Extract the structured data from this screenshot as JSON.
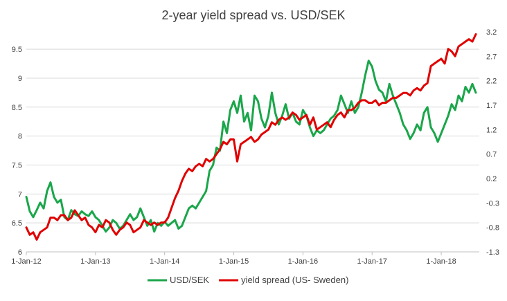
{
  "chart_data": {
    "type": "line",
    "title": "2-year yield spread vs. USD/SEK",
    "xlabel": "",
    "ylabel": "",
    "y2label": "",
    "x_ticks": [
      "1-Jan-12",
      "1-Jan-13",
      "1-Jan-14",
      "1-Jan-15",
      "1-Jan-16",
      "1-Jan-17",
      "1-Jan-18"
    ],
    "x_range": [
      2012.0,
      2018.55
    ],
    "ylim_left": [
      6,
      9.8
    ],
    "yticks_left": [
      "6",
      "6.5",
      "7",
      "7.5",
      "8",
      "8.5",
      "9",
      "9.5"
    ],
    "ylim_right": [
      -1.3,
      3.2
    ],
    "yticks_right": [
      "-1.3",
      "-0.8",
      "-0.3",
      "0.2",
      "0.7",
      "1.2",
      "1.7",
      "2.2",
      "2.7",
      "3.2"
    ],
    "legend_position": "bottom",
    "grid": "horizontal",
    "series": [
      {
        "name": "USD/SEK",
        "color": "#1aa64a",
        "axis": "left",
        "x": [
          2012.0,
          2012.05,
          2012.1,
          2012.15,
          2012.2,
          2012.25,
          2012.3,
          2012.35,
          2012.4,
          2012.45,
          2012.5,
          2012.55,
          2012.6,
          2012.65,
          2012.7,
          2012.75,
          2012.8,
          2012.85,
          2012.9,
          2012.95,
          2013.0,
          2013.05,
          2013.1,
          2013.15,
          2013.2,
          2013.25,
          2013.3,
          2013.35,
          2013.4,
          2013.45,
          2013.5,
          2013.55,
          2013.6,
          2013.65,
          2013.7,
          2013.75,
          2013.8,
          2013.85,
          2013.9,
          2013.95,
          2014.0,
          2014.05,
          2014.1,
          2014.15,
          2014.2,
          2014.25,
          2014.3,
          2014.35,
          2014.4,
          2014.45,
          2014.5,
          2014.55,
          2014.6,
          2014.65,
          2014.7,
          2014.75,
          2014.8,
          2014.85,
          2014.9,
          2014.95,
          2015.0,
          2015.05,
          2015.1,
          2015.15,
          2015.2,
          2015.25,
          2015.3,
          2015.35,
          2015.4,
          2015.45,
          2015.5,
          2015.55,
          2015.6,
          2015.65,
          2015.7,
          2015.75,
          2015.8,
          2015.85,
          2015.9,
          2015.95,
          2016.0,
          2016.05,
          2016.1,
          2016.15,
          2016.2,
          2016.25,
          2016.3,
          2016.35,
          2016.4,
          2016.45,
          2016.5,
          2016.55,
          2016.6,
          2016.65,
          2016.7,
          2016.75,
          2016.8,
          2016.85,
          2016.9,
          2016.95,
          2017.0,
          2017.05,
          2017.1,
          2017.15,
          2017.2,
          2017.25,
          2017.3,
          2017.35,
          2017.4,
          2017.45,
          2017.5,
          2017.55,
          2017.6,
          2017.65,
          2017.7,
          2017.75,
          2017.8,
          2017.85,
          2017.9,
          2017.95,
          2018.0,
          2018.05,
          2018.1,
          2018.15,
          2018.2,
          2018.25,
          2018.3,
          2018.35,
          2018.4,
          2018.45,
          2018.5
        ],
        "values": [
          6.95,
          6.7,
          6.6,
          6.72,
          6.85,
          6.75,
          7.05,
          7.2,
          6.95,
          6.85,
          6.9,
          6.6,
          6.55,
          6.72,
          6.65,
          6.62,
          6.7,
          6.65,
          6.62,
          6.7,
          6.6,
          6.55,
          6.45,
          6.35,
          6.42,
          6.55,
          6.5,
          6.4,
          6.45,
          6.55,
          6.65,
          6.55,
          6.6,
          6.75,
          6.6,
          6.45,
          6.55,
          6.35,
          6.5,
          6.45,
          6.52,
          6.45,
          6.5,
          6.55,
          6.4,
          6.45,
          6.6,
          6.75,
          6.8,
          6.75,
          6.85,
          6.95,
          7.05,
          7.4,
          7.5,
          7.8,
          7.75,
          8.25,
          8.05,
          8.45,
          8.6,
          8.4,
          8.7,
          8.25,
          8.4,
          8.1,
          8.7,
          8.6,
          8.3,
          8.15,
          8.35,
          8.75,
          8.4,
          8.2,
          8.35,
          8.55,
          8.3,
          8.4,
          8.25,
          8.2,
          8.45,
          8.35,
          8.15,
          8.0,
          8.1,
          8.05,
          8.1,
          8.2,
          8.3,
          8.35,
          8.45,
          8.7,
          8.55,
          8.4,
          8.6,
          8.4,
          8.5,
          8.75,
          9.05,
          9.3,
          9.2,
          8.95,
          8.8,
          8.75,
          8.6,
          8.9,
          8.7,
          8.55,
          8.4,
          8.2,
          8.1,
          7.95,
          8.05,
          8.2,
          8.1,
          8.4,
          8.5,
          8.15,
          8.05,
          7.9,
          8.05,
          8.2,
          8.35,
          8.55,
          8.45,
          8.7,
          8.6,
          8.85,
          8.75,
          8.9,
          8.75
        ]
      },
      {
        "name": "yield spread (US- Sweden)",
        "color": "#e00000",
        "axis": "right",
        "x": [
          2012.0,
          2012.05,
          2012.1,
          2012.15,
          2012.2,
          2012.25,
          2012.3,
          2012.35,
          2012.4,
          2012.45,
          2012.5,
          2012.55,
          2012.6,
          2012.65,
          2012.7,
          2012.75,
          2012.8,
          2012.85,
          2012.9,
          2012.95,
          2013.0,
          2013.05,
          2013.1,
          2013.15,
          2013.2,
          2013.25,
          2013.3,
          2013.35,
          2013.4,
          2013.45,
          2013.5,
          2013.55,
          2013.6,
          2013.65,
          2013.7,
          2013.75,
          2013.8,
          2013.85,
          2013.9,
          2013.95,
          2014.0,
          2014.05,
          2014.1,
          2014.15,
          2014.2,
          2014.25,
          2014.3,
          2014.35,
          2014.4,
          2014.45,
          2014.5,
          2014.55,
          2014.6,
          2014.65,
          2014.7,
          2014.75,
          2014.8,
          2014.85,
          2014.9,
          2014.95,
          2015.0,
          2015.05,
          2015.1,
          2015.15,
          2015.2,
          2015.25,
          2015.3,
          2015.35,
          2015.4,
          2015.45,
          2015.5,
          2015.55,
          2015.6,
          2015.65,
          2015.7,
          2015.75,
          2015.8,
          2015.85,
          2015.9,
          2015.95,
          2016.0,
          2016.05,
          2016.1,
          2016.15,
          2016.2,
          2016.25,
          2016.3,
          2016.35,
          2016.4,
          2016.45,
          2016.5,
          2016.55,
          2016.6,
          2016.65,
          2016.7,
          2016.75,
          2016.8,
          2016.85,
          2016.9,
          2016.95,
          2017.0,
          2017.05,
          2017.1,
          2017.15,
          2017.2,
          2017.25,
          2017.3,
          2017.35,
          2017.4,
          2017.45,
          2017.5,
          2017.55,
          2017.6,
          2017.65,
          2017.7,
          2017.75,
          2017.8,
          2017.85,
          2017.9,
          2017.95,
          2018.0,
          2018.05,
          2018.1,
          2018.15,
          2018.2,
          2018.25,
          2018.3,
          2018.35,
          2018.4,
          2018.45,
          2018.5
        ],
        "values": [
          -0.8,
          -0.95,
          -0.9,
          -1.05,
          -0.9,
          -0.85,
          -0.8,
          -0.6,
          -0.6,
          -0.65,
          -0.55,
          -0.55,
          -0.65,
          -0.6,
          -0.45,
          -0.55,
          -0.65,
          -0.6,
          -0.75,
          -0.8,
          -0.9,
          -0.75,
          -0.8,
          -0.65,
          -0.7,
          -0.85,
          -0.95,
          -0.85,
          -0.8,
          -0.7,
          -0.75,
          -0.9,
          -0.85,
          -0.8,
          -0.65,
          -0.7,
          -0.75,
          -0.7,
          -0.75,
          -0.7,
          -0.7,
          -0.6,
          -0.4,
          -0.2,
          -0.05,
          0.15,
          0.3,
          0.4,
          0.35,
          0.45,
          0.5,
          0.45,
          0.6,
          0.55,
          0.6,
          0.7,
          0.8,
          0.95,
          0.9,
          1.0,
          1.0,
          0.55,
          0.9,
          0.95,
          1.0,
          1.05,
          0.95,
          1.0,
          1.1,
          1.15,
          1.2,
          1.35,
          1.3,
          1.4,
          1.45,
          1.4,
          1.45,
          1.55,
          1.5,
          1.4,
          1.45,
          1.5,
          1.3,
          1.45,
          1.2,
          1.25,
          1.3,
          1.35,
          1.25,
          1.4,
          1.5,
          1.55,
          1.45,
          1.6,
          1.6,
          1.65,
          1.75,
          1.8,
          1.8,
          1.75,
          1.75,
          1.8,
          1.7,
          1.75,
          1.75,
          1.8,
          1.85,
          1.85,
          1.9,
          1.95,
          1.95,
          1.9,
          2.0,
          2.05,
          2.0,
          2.1,
          2.15,
          2.5,
          2.55,
          2.6,
          2.65,
          2.55,
          2.85,
          2.8,
          2.7,
          2.9,
          2.95,
          3.0,
          3.05,
          3.0,
          3.15
        ]
      }
    ]
  }
}
